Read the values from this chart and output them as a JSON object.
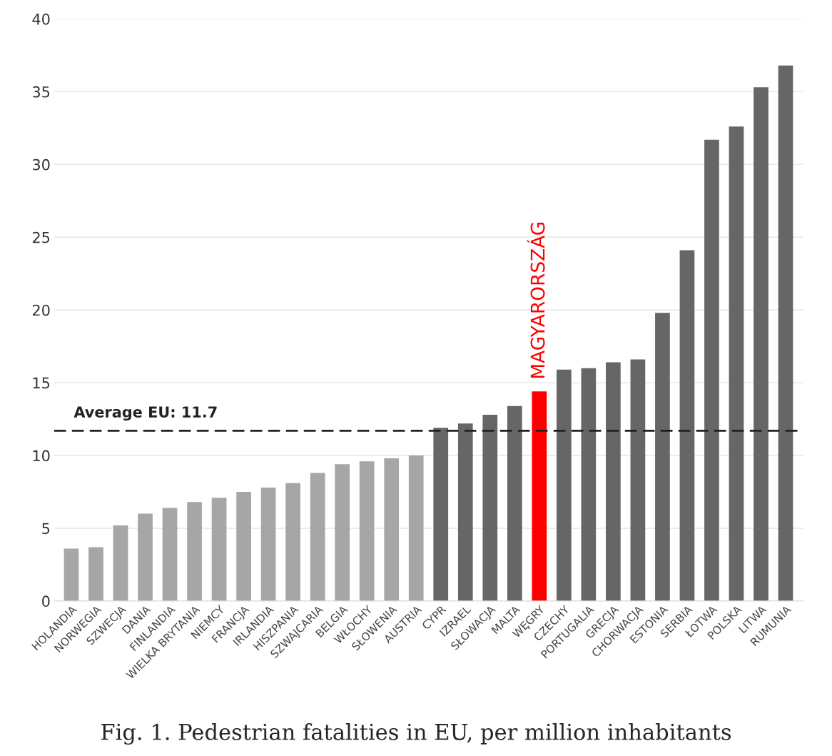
{
  "chart_data": {
    "type": "bar",
    "categories": [
      "HOLANDIA",
      "NORWEGIA",
      "SZWECJA",
      "DANIA",
      "FINLANDIA",
      "WIELKA BRYTANIA",
      "NIEMCY",
      "FRANCJA",
      "IRLANDIA",
      "HISZPANIA",
      "SZWAJCARIA",
      "BELGIA",
      "WŁOCHY",
      "SŁOWENIA",
      "AUSTRIA",
      "CYPR",
      "IZRAEL",
      "SŁOWACJA",
      "MALTA",
      "WĘGRY",
      "CZECHY",
      "PORTUGALIA",
      "GRECJA",
      "CHORWACJA",
      "ESTONIA",
      "SERBIA",
      "ŁOTWA",
      "POLSKA",
      "LITWA",
      "RUMUNIA"
    ],
    "values": [
      3.6,
      3.7,
      5.2,
      6.0,
      6.4,
      6.8,
      7.1,
      7.5,
      7.8,
      8.1,
      8.8,
      9.4,
      9.6,
      9.8,
      10.0,
      11.9,
      12.2,
      12.8,
      13.4,
      14.4,
      15.9,
      16.0,
      16.4,
      16.6,
      19.8,
      24.1,
      31.7,
      32.6,
      35.3,
      36.8
    ],
    "colors": [
      "#a6a6a6",
      "#a6a6a6",
      "#a6a6a6",
      "#a6a6a6",
      "#a6a6a6",
      "#a6a6a6",
      "#a6a6a6",
      "#a6a6a6",
      "#a6a6a6",
      "#a6a6a6",
      "#a6a6a6",
      "#a6a6a6",
      "#a6a6a6",
      "#a6a6a6",
      "#a6a6a6",
      "#666666",
      "#666666",
      "#666666",
      "#666666",
      "#ff0000",
      "#666666",
      "#666666",
      "#666666",
      "#666666",
      "#666666",
      "#666666",
      "#666666",
      "#666666",
      "#666666",
      "#666666"
    ],
    "ylim": [
      0,
      40
    ],
    "yticks": [
      0,
      5,
      10,
      15,
      20,
      25,
      30,
      35,
      40
    ],
    "grid": "y",
    "ref_lines": [
      {
        "axis": "y",
        "value": 11.7,
        "label": "Average EU: 11.7",
        "color": "#222222",
        "line_style": "dashed"
      }
    ],
    "annotations": [
      {
        "text": "MAGYARORSZÁG",
        "x": "WĘGRY",
        "y": 14.4
      },
      "Fig. 1. Pedestrian fatalities in EU, per million inhabitants"
    ]
  }
}
